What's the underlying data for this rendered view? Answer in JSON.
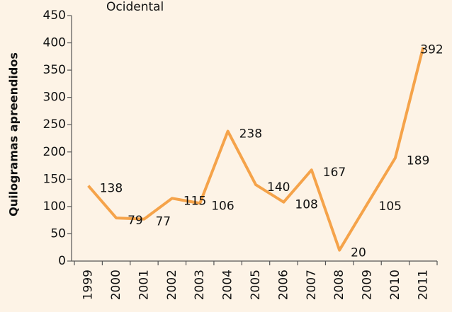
{
  "chart_data": {
    "type": "line",
    "title": "Ocidental",
    "y_label": "Quilogramas apreendidos",
    "categories": [
      "1999",
      "2000",
      "2001",
      "2002",
      "2003",
      "2004",
      "2005",
      "2006",
      "2007",
      "2008",
      "2009",
      "2010",
      "2011"
    ],
    "series": [
      {
        "name": "Quilogramas apreendidos",
        "color": "#f5a34a",
        "values": [
          138,
          79,
          77,
          115,
          106,
          238,
          140,
          108,
          167,
          20,
          105,
          189,
          392
        ]
      }
    ],
    "ylim": [
      0,
      450
    ],
    "yticks": [
      0,
      50,
      100,
      150,
      200,
      250,
      300,
      350,
      400,
      450
    ],
    "grid": false
  }
}
